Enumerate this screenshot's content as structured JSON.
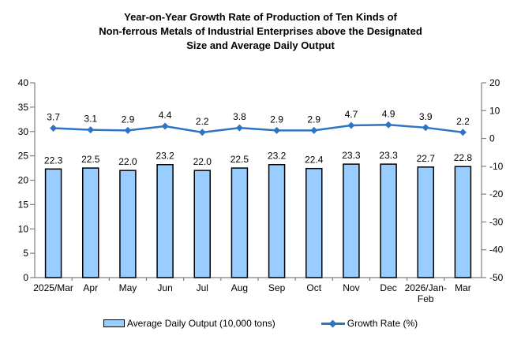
{
  "title_lines": [
    "Year-on-Year Growth Rate of Production of Ten Kinds of",
    "Non-ferrous Metals of Industrial Enterprises above the Designated",
    "Size and Average Daily Output"
  ],
  "chart_data": {
    "type": "bar",
    "combo": "bar + line, dual y-axis",
    "title": "Year-on-Year Growth Rate of Production of Ten Kinds of Non-ferrous Metals of Industrial Enterprises above the Designated Size and Average Daily Output",
    "categories": [
      "2025/Mar",
      "Apr",
      "May",
      "Jun",
      "Jul",
      "Aug",
      "Sep",
      "Oct",
      "Nov",
      "Dec",
      "2026/Jan-\nFeb",
      "Mar"
    ],
    "series": [
      {
        "name": "Average Daily Output (10,000 tons)",
        "type": "bar",
        "axis": "left",
        "values": [
          22.3,
          22.5,
          22.0,
          23.2,
          22.0,
          22.5,
          23.2,
          22.4,
          23.3,
          23.3,
          22.7,
          22.8
        ]
      },
      {
        "name": "Growth Rate (%)",
        "type": "line",
        "axis": "right",
        "values": [
          3.7,
          3.1,
          2.9,
          4.4,
          2.2,
          3.8,
          2.9,
          2.9,
          4.7,
          4.9,
          3.9,
          2.2
        ]
      }
    ],
    "left_axis": {
      "min": 0,
      "max": 40,
      "tick_step": 5,
      "tick_labels": [
        "0",
        "5",
        "10",
        "15",
        "20",
        "25",
        "30",
        "35",
        "40"
      ]
    },
    "right_axis": {
      "min": -50,
      "max": 20,
      "tick_step": 10,
      "tick_labels": [
        "-50",
        "-40",
        "-30",
        "-20",
        "-10",
        "0",
        "10",
        "20"
      ]
    },
    "grid": false,
    "data_labels": true,
    "legend_position": "bottom"
  },
  "legend": {
    "bar_label": "Average Daily Output (10,000 tons)",
    "line_label": "Growth Rate (%)"
  },
  "colors": {
    "bar_fill": "#99CCFF",
    "bar_border": "#000000",
    "line": "#2E74C4",
    "axis": "#808080",
    "text": "#000000"
  }
}
